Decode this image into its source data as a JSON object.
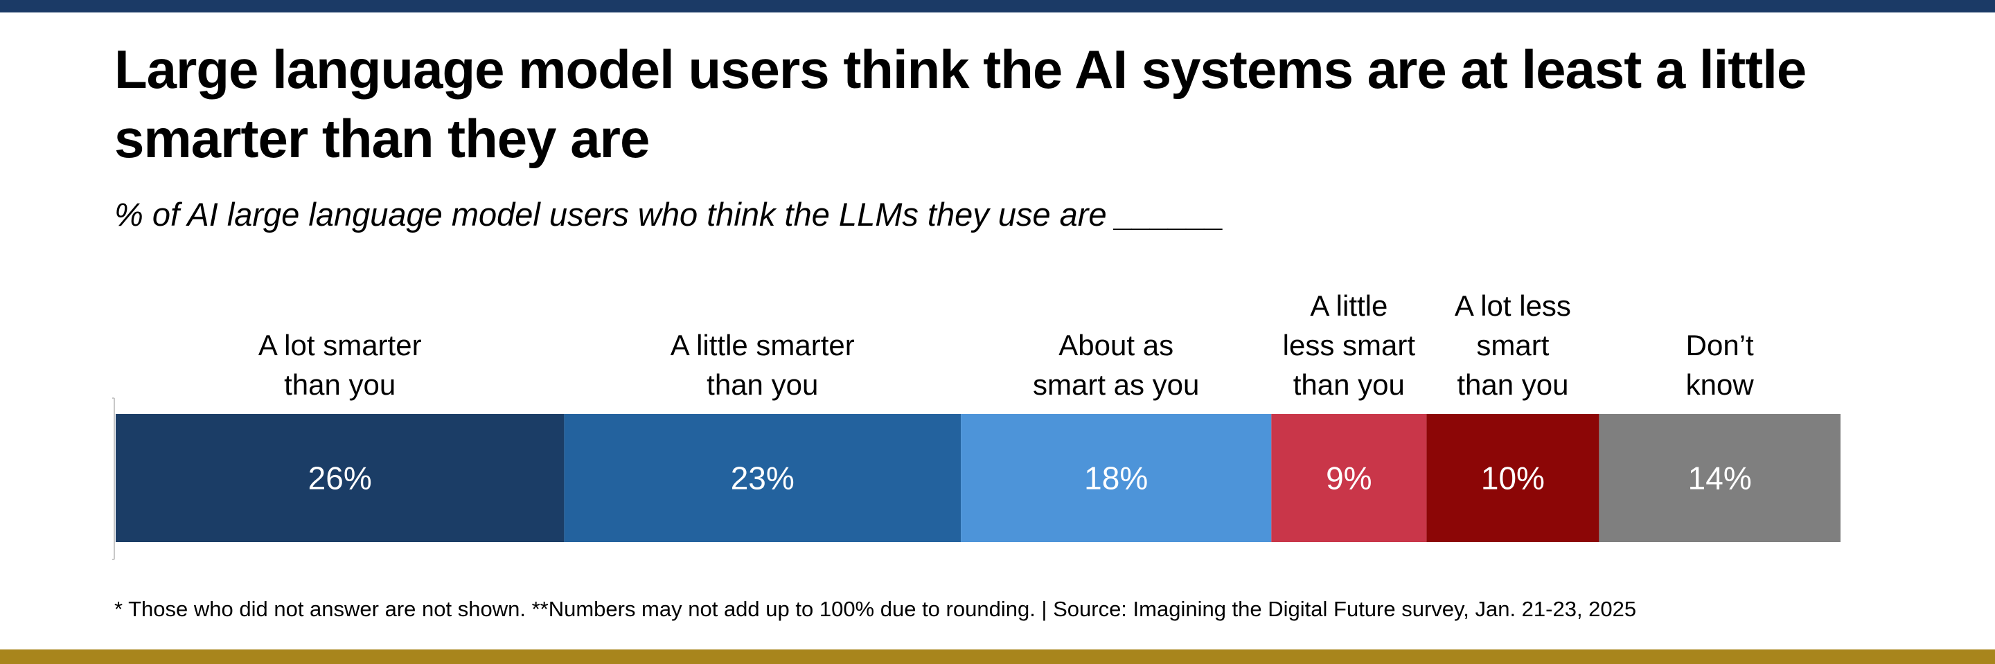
{
  "title": "Large language model users think the AI systems are at least a little smarter than they are",
  "subtitle": "% of AI large language model users who think the LLMs they use are ______",
  "footnote": "* Those who did not answer are not shown. **Numbers may not add up to 100% due to rounding. | Source: Imagining the Digital Future survey, Jan. 21-23, 2025",
  "colors": {
    "top_bar": "#1b3a66",
    "bottom_bar": "#a8851c",
    "label_text": "#000000",
    "value_text": "#ffffff"
  },
  "chart_data": {
    "type": "bar",
    "orientation": "horizontal-stacked",
    "title": "Large language model users think the AI systems are at least a little smarter than they are",
    "subtitle": "% of AI large language model users who think the LLMs they use are ______",
    "xlabel": "",
    "ylabel": "",
    "unit": "%",
    "grid": false,
    "legend": "labels above segments",
    "categories": [
      "A lot smarter than you",
      "A little smarter than you",
      "About as smart as you",
      "A little less smart than you",
      "A lot less smart than you",
      "Don’t know"
    ],
    "label_lines": [
      [
        "A lot smarter",
        "than you"
      ],
      [
        "A little smarter",
        "than you"
      ],
      [
        "About as",
        "smart as you"
      ],
      [
        "A little",
        "less smart",
        "than you"
      ],
      [
        "A lot less",
        "smart",
        "than you"
      ],
      [
        "Don’t",
        "know"
      ]
    ],
    "values": [
      26,
      23,
      18,
      9,
      10,
      14
    ],
    "value_labels": [
      "26%",
      "23%",
      "18%",
      "9%",
      "10%",
      "14%"
    ],
    "colors": [
      "#1b3d66",
      "#23629e",
      "#4d94d9",
      "#c93649",
      "#8c0606",
      "#7f7f7f"
    ]
  }
}
